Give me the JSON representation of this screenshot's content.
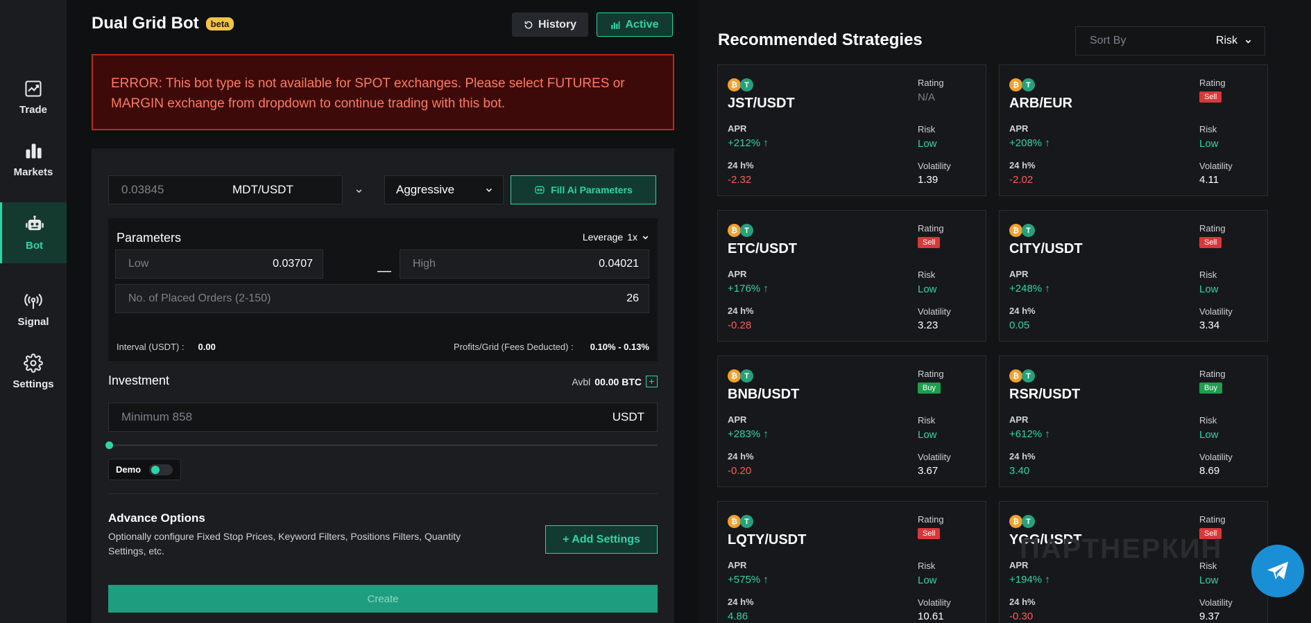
{
  "sidebar": {
    "items": [
      {
        "label": "Trade",
        "icon": "trade-chart-icon"
      },
      {
        "label": "Markets",
        "icon": "bar-chart-icon"
      },
      {
        "label": "Bot",
        "icon": "robot-icon",
        "active": true
      },
      {
        "label": "Signal",
        "icon": "broadcast-icon"
      },
      {
        "label": "Settings",
        "icon": "gear-icon"
      }
    ]
  },
  "header": {
    "title": "Dual Grid Bot",
    "badge": "beta",
    "history_label": "History",
    "active_label": "Active"
  },
  "error": {
    "text": "ERROR: This bot type is not available for SPOT exchanges. Please select FUTURES or MARGIN exchange from dropdown to continue trading with this bot."
  },
  "form": {
    "price": "0.03845",
    "pair": "MDT/USDT",
    "mode": "Aggressive",
    "fill_ai_label": "Fill Ai Parameters",
    "params_title": "Parameters",
    "leverage_label": "Leverage",
    "leverage_value": "1x",
    "low_label": "Low",
    "low_value": "0.03707",
    "dash": "—",
    "high_label": "High",
    "high_value": "0.04021",
    "orders_label": "No. of Placed Orders (2-150)",
    "orders_value": "26",
    "interval_label": "Interval (USDT) :",
    "interval_value": "0.00",
    "profit_label": "Profits/Grid (Fees Deducted) :",
    "profit_value": "0.10% - 0.13%",
    "investment_title": "Investment",
    "avbl_label": "Avbl",
    "avbl_value": "00.00 BTC",
    "investment_placeholder": "Minimum 858",
    "investment_unit": "USDT",
    "slider_percent": 0,
    "demo_label": "Demo",
    "advance_title": "Advance Options",
    "advance_desc": "Optionally configure Fixed Stop Prices, Keyword Filters, Positions Filters, Quantity Settings, etc.",
    "add_settings_label": "+ Add Settings",
    "create_label": "Create"
  },
  "recommended": {
    "title": "Recommended Strategies",
    "sort_label": "Sort By",
    "sort_value": "Risk",
    "labels": {
      "rating": "Rating",
      "apr": "APR",
      "risk": "Risk",
      "h24": "24 h%",
      "volatility": "Volatility"
    },
    "cards": [
      {
        "pair": "JST/USDT",
        "rating": "N/A",
        "apr": "+212%",
        "risk": "Low",
        "h24": "-2.32",
        "volatility": "1.39"
      },
      {
        "pair": "ARB/EUR",
        "rating": "Sell",
        "apr": "+208%",
        "risk": "Low",
        "h24": "-2.02",
        "volatility": "4.11"
      },
      {
        "pair": "ETC/USDT",
        "rating": "Sell",
        "apr": "+176%",
        "risk": "Low",
        "h24": "-0.28",
        "volatility": "3.23"
      },
      {
        "pair": "CITY/USDT",
        "rating": "Sell",
        "apr": "+248%",
        "risk": "Low",
        "h24": "0.05",
        "volatility": "3.34"
      },
      {
        "pair": "BNB/USDT",
        "rating": "Buy",
        "apr": "+283%",
        "risk": "Low",
        "h24": "-0.20",
        "volatility": "3.67"
      },
      {
        "pair": "RSR/USDT",
        "rating": "Buy",
        "apr": "+612%",
        "risk": "Low",
        "h24": "3.40",
        "volatility": "8.69"
      },
      {
        "pair": "LQTY/USDT",
        "rating": "Sell",
        "apr": "+575%",
        "risk": "Low",
        "h24": "4.86",
        "volatility": "10.61"
      },
      {
        "pair": "YGG/USDT",
        "rating": "Sell",
        "apr": "+194%",
        "risk": "Low",
        "h24": "-0.30",
        "volatility": "9.37"
      }
    ]
  },
  "watermark": "ПАРТНЕРКИН",
  "colors": {
    "accent": "#2dd4a7",
    "error": "#ff7a5e",
    "sell": "#d9383a",
    "buy": "#1f9e4f",
    "negative": "#ff5b5b"
  }
}
